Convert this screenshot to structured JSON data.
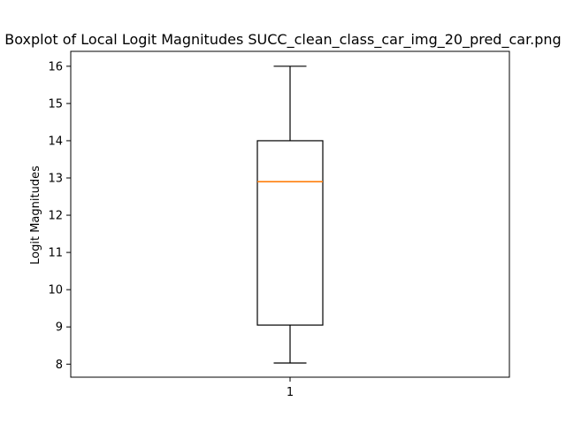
{
  "chart_data": {
    "type": "boxplot",
    "title": "Boxplot of Local Logit Magnitudes SUCC_clean_class_car_img_20_pred_car.png",
    "xlabel": "",
    "ylabel": "Logit Magnitudes",
    "categories": [
      "1"
    ],
    "ylim": [
      7.65,
      16.4
    ],
    "yticks": [
      8,
      9,
      10,
      11,
      12,
      13,
      14,
      15,
      16
    ],
    "grid": false,
    "series": [
      {
        "whisker_low": 8.03,
        "q1": 9.05,
        "median": 12.9,
        "q3": 14.0,
        "whisker_high": 16.0
      }
    ],
    "colors": {
      "box": "#000000",
      "median": "#ff7f0e",
      "axes": "#000000"
    }
  }
}
